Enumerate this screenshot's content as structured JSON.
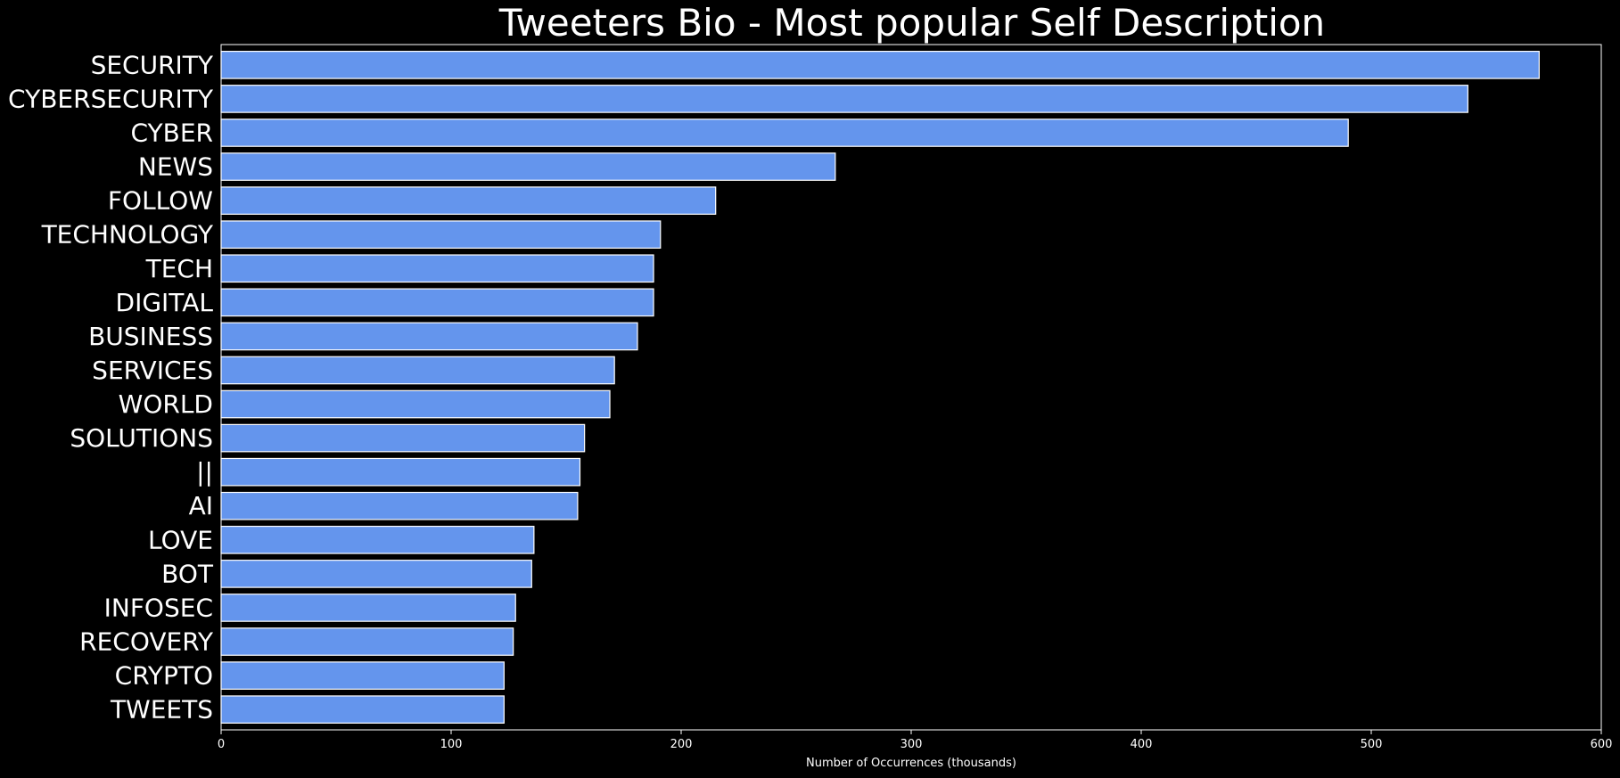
{
  "chart_data": {
    "type": "bar",
    "orientation": "horizontal",
    "title": "Tweeters Bio - Most popular Self Description",
    "xlabel": "Number of Occurrences (thousands)",
    "ylabel": "",
    "xlim": [
      0,
      600
    ],
    "xticks": [
      0,
      100,
      200,
      300,
      400,
      500,
      600
    ],
    "grid": false,
    "bar_color": "#6495ED",
    "bar_edge_color": "#ffffff",
    "background": "#000000",
    "categories": [
      "SECURITY",
      "CYBERSECURITY",
      "CYBER",
      "NEWS",
      "FOLLOW",
      "TECHNOLOGY",
      "TECH",
      "DIGITAL",
      "BUSINESS",
      "SERVICES",
      "WORLD",
      "SOLUTIONS",
      "||",
      "AI",
      "LOVE",
      "BOT",
      "INFOSEC",
      "RECOVERY",
      "CRYPTO",
      "TWEETS"
    ],
    "values": [
      573,
      542,
      490,
      267,
      215,
      191,
      188,
      188,
      181,
      171,
      169,
      158,
      156,
      155,
      136,
      135,
      128,
      127,
      123,
      123
    ]
  }
}
